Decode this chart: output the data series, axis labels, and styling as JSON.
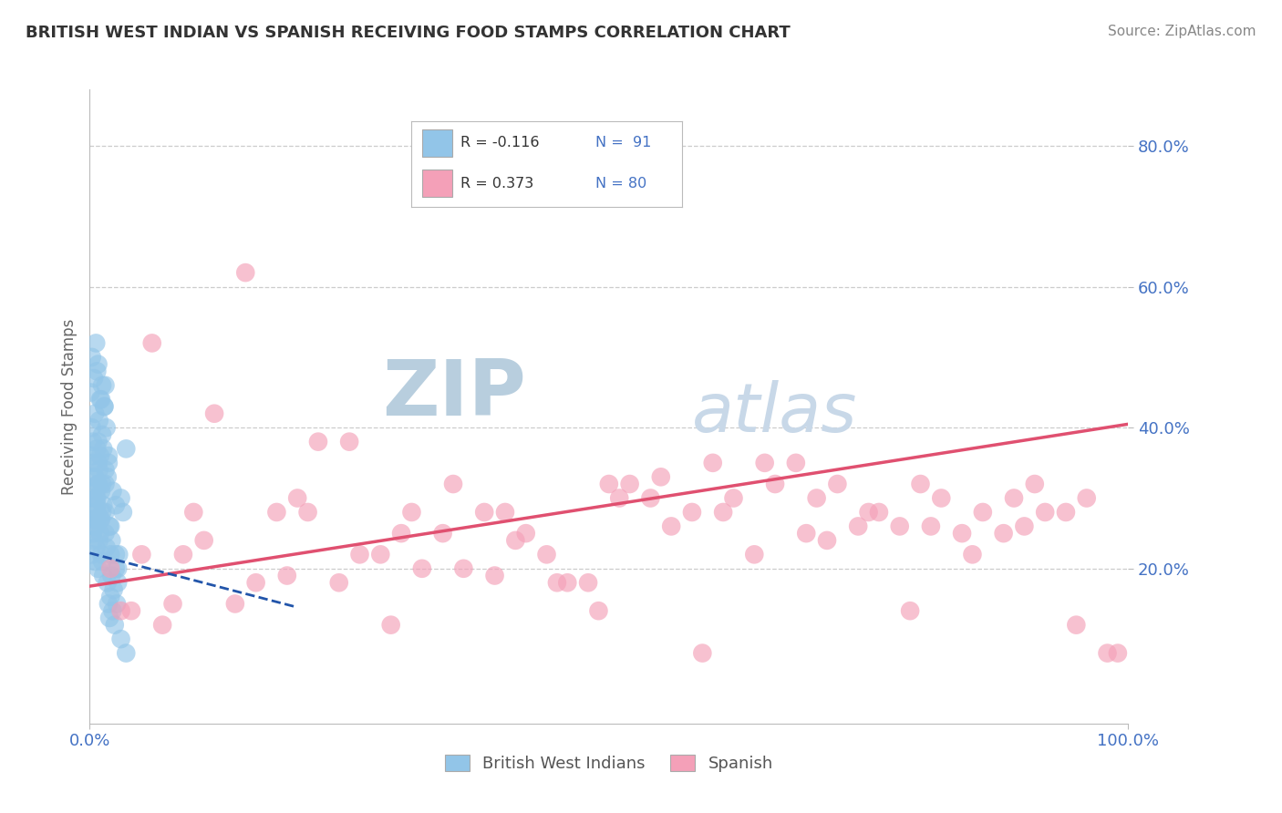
{
  "title": "BRITISH WEST INDIAN VS SPANISH RECEIVING FOOD STAMPS CORRELATION CHART",
  "source_text": "Source: ZipAtlas.com",
  "ylabel": "Receiving Food Stamps",
  "xlim": [
    0.0,
    1.0
  ],
  "ylim": [
    -0.02,
    0.88
  ],
  "x_tick_labels": [
    "0.0%",
    "100.0%"
  ],
  "y_tick_labels": [
    "20.0%",
    "40.0%",
    "60.0%",
    "80.0%"
  ],
  "y_tick_vals": [
    0.2,
    0.4,
    0.6,
    0.8
  ],
  "r1": -0.116,
  "r2": 0.373,
  "n1": 91,
  "n2": 80,
  "blue_color": "#92C5E8",
  "pink_color": "#F4A0B8",
  "blue_line_color": "#2255AA",
  "pink_line_color": "#E05070",
  "title_color": "#333333",
  "source_color": "#888888",
  "background_color": "#FFFFFF",
  "watermark_zip": "ZIP",
  "watermark_atlas": "atlas",
  "watermark_color_zip": "#B8CEDE",
  "watermark_color_atlas": "#C8D8E8",
  "grid_color": "#CCCCCC",
  "axis_label_color": "#4472C4",
  "blue_scatter_x": [
    0.005,
    0.008,
    0.003,
    0.006,
    0.004,
    0.002,
    0.007,
    0.005,
    0.003,
    0.006,
    0.008,
    0.004,
    0.007,
    0.002,
    0.005,
    0.009,
    0.003,
    0.006,
    0.004,
    0.007,
    0.01,
    0.012,
    0.008,
    0.006,
    0.004,
    0.011,
    0.013,
    0.007,
    0.009,
    0.011,
    0.015,
    0.018,
    0.012,
    0.01,
    0.008,
    0.016,
    0.019,
    0.007,
    0.013,
    0.015,
    0.02,
    0.025,
    0.018,
    0.015,
    0.012,
    0.022,
    0.027,
    0.011,
    0.017,
    0.021,
    0.03,
    0.035,
    0.025,
    0.02,
    0.015,
    0.032,
    0.002,
    0.001,
    0.003,
    0.005,
    0.007,
    0.008,
    0.009,
    0.01,
    0.011,
    0.012,
    0.013,
    0.014,
    0.015,
    0.016,
    0.017,
    0.018,
    0.019,
    0.02,
    0.021,
    0.022,
    0.023,
    0.024,
    0.025,
    0.026,
    0.027,
    0.028,
    0.03,
    0.035,
    0.002,
    0.004,
    0.006,
    0.008,
    0.01,
    0.012,
    0.014
  ],
  "blue_scatter_y": [
    0.28,
    0.32,
    0.25,
    0.3,
    0.35,
    0.22,
    0.27,
    0.33,
    0.26,
    0.31,
    0.38,
    0.24,
    0.29,
    0.36,
    0.21,
    0.34,
    0.27,
    0.23,
    0.3,
    0.28,
    0.25,
    0.32,
    0.2,
    0.26,
    0.33,
    0.22,
    0.29,
    0.37,
    0.24,
    0.31,
    0.28,
    0.35,
    0.21,
    0.27,
    0.32,
    0.23,
    0.26,
    0.3,
    0.19,
    0.34,
    0.22,
    0.29,
    0.36,
    0.25,
    0.28,
    0.31,
    0.2,
    0.27,
    0.33,
    0.24,
    0.3,
    0.37,
    0.22,
    0.26,
    0.32,
    0.28,
    0.4,
    0.45,
    0.38,
    0.42,
    0.48,
    0.35,
    0.41,
    0.36,
    0.44,
    0.39,
    0.37,
    0.43,
    0.46,
    0.4,
    0.18,
    0.15,
    0.13,
    0.16,
    0.19,
    0.14,
    0.17,
    0.12,
    0.2,
    0.15,
    0.18,
    0.22,
    0.1,
    0.08,
    0.5,
    0.47,
    0.52,
    0.49,
    0.44,
    0.46,
    0.43
  ],
  "pink_scatter_x": [
    0.05,
    0.1,
    0.15,
    0.2,
    0.25,
    0.3,
    0.35,
    0.4,
    0.45,
    0.5,
    0.55,
    0.6,
    0.65,
    0.7,
    0.75,
    0.8,
    0.85,
    0.9,
    0.95,
    0.02,
    0.08,
    0.12,
    0.18,
    0.22,
    0.28,
    0.32,
    0.38,
    0.42,
    0.48,
    0.52,
    0.58,
    0.62,
    0.68,
    0.72,
    0.78,
    0.82,
    0.88,
    0.92,
    0.98,
    0.04,
    0.09,
    0.14,
    0.19,
    0.24,
    0.29,
    0.34,
    0.39,
    0.44,
    0.49,
    0.54,
    0.59,
    0.64,
    0.69,
    0.74,
    0.79,
    0.84,
    0.89,
    0.94,
    0.99,
    0.06,
    0.11,
    0.16,
    0.21,
    0.26,
    0.31,
    0.36,
    0.41,
    0.46,
    0.51,
    0.56,
    0.61,
    0.66,
    0.71,
    0.76,
    0.81,
    0.86,
    0.91,
    0.96,
    0.03,
    0.07
  ],
  "pink_scatter_y": [
    0.22,
    0.28,
    0.62,
    0.3,
    0.38,
    0.25,
    0.32,
    0.28,
    0.18,
    0.32,
    0.33,
    0.35,
    0.35,
    0.3,
    0.28,
    0.32,
    0.22,
    0.26,
    0.12,
    0.2,
    0.15,
    0.42,
    0.28,
    0.38,
    0.22,
    0.2,
    0.28,
    0.25,
    0.18,
    0.32,
    0.28,
    0.3,
    0.35,
    0.32,
    0.26,
    0.3,
    0.25,
    0.28,
    0.08,
    0.14,
    0.22,
    0.15,
    0.19,
    0.18,
    0.12,
    0.25,
    0.19,
    0.22,
    0.14,
    0.3,
    0.08,
    0.22,
    0.25,
    0.26,
    0.14,
    0.25,
    0.3,
    0.28,
    0.08,
    0.52,
    0.24,
    0.18,
    0.28,
    0.22,
    0.28,
    0.2,
    0.24,
    0.18,
    0.3,
    0.26,
    0.28,
    0.32,
    0.24,
    0.28,
    0.26,
    0.28,
    0.32,
    0.3,
    0.14,
    0.12
  ],
  "pink_line_start_x": 0.0,
  "pink_line_start_y": 0.175,
  "pink_line_end_x": 1.0,
  "pink_line_end_y": 0.405,
  "blue_line_start_x": 0.0,
  "blue_line_start_y": 0.222,
  "blue_line_end_x": 0.2,
  "blue_line_end_y": 0.145
}
